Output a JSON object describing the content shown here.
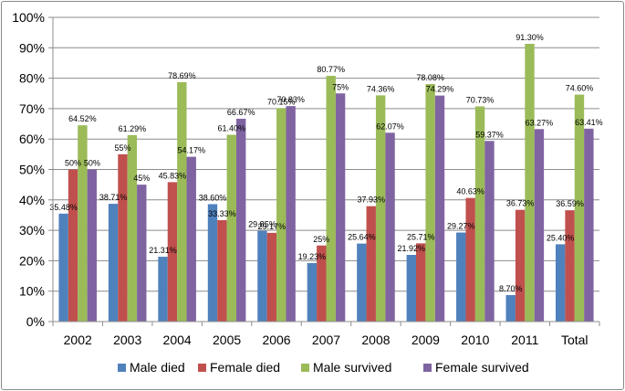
{
  "chart_data": {
    "type": "bar",
    "title": "",
    "xlabel": "",
    "ylabel": "",
    "ylim": [
      0,
      100
    ],
    "y_ticks": [
      "0%",
      "10%",
      "20%",
      "30%",
      "40%",
      "50%",
      "60%",
      "70%",
      "80%",
      "90%",
      "100%"
    ],
    "gridlines": true,
    "legend_position": "bottom",
    "categories": [
      "2002",
      "2003",
      "2004",
      "2005",
      "2006",
      "2007",
      "2008",
      "2009",
      "2010",
      "2011",
      "Total"
    ],
    "series": [
      {
        "name": "Male died",
        "color": "#4f81bd",
        "values": [
          35.48,
          38.71,
          21.31,
          38.6,
          29.85,
          19.23,
          25.64,
          21.92,
          29.27,
          8.7,
          25.4
        ],
        "labels": [
          "35.48%",
          "38.71%",
          "21.31%",
          "38.60%",
          "29.85%",
          "19.23%",
          "25.64%",
          "21.92%",
          "29.27%",
          "8.70%",
          "25.40%"
        ]
      },
      {
        "name": "Female died",
        "color": "#c0504d",
        "values": [
          50,
          55,
          45.83,
          33.33,
          29.17,
          25,
          37.93,
          25.71,
          40.63,
          36.73,
          36.59
        ],
        "labels": [
          "50%",
          "55%",
          "45.83%",
          "33.33%",
          "29.17%",
          "25%",
          "37.93%",
          "25.71%",
          "40.63%",
          "36.73%",
          "36.59%"
        ]
      },
      {
        "name": "Male survived",
        "color": "#9bbb59",
        "values": [
          64.52,
          61.29,
          78.69,
          61.4,
          70.15,
          80.77,
          74.36,
          78.08,
          70.73,
          91.3,
          74.6
        ],
        "labels": [
          "64.52%",
          "61.29%",
          "78.69%",
          "61.40%",
          "70.15%",
          "80.77%",
          "74.36%",
          "78.08%",
          "70.73%",
          "91.30%",
          "74.60%"
        ]
      },
      {
        "name": "Female survived",
        "color": "#8064a2",
        "values": [
          50,
          45,
          54.17,
          66.67,
          70.83,
          75,
          62.07,
          74.29,
          59.37,
          63.27,
          63.41
        ],
        "labels": [
          "50%",
          "45%",
          "54.17%",
          "66.67%",
          "70.83%",
          "75%",
          "62.07%",
          "74.29%",
          "59.37%",
          "63.27%",
          "63.41%"
        ]
      }
    ]
  }
}
